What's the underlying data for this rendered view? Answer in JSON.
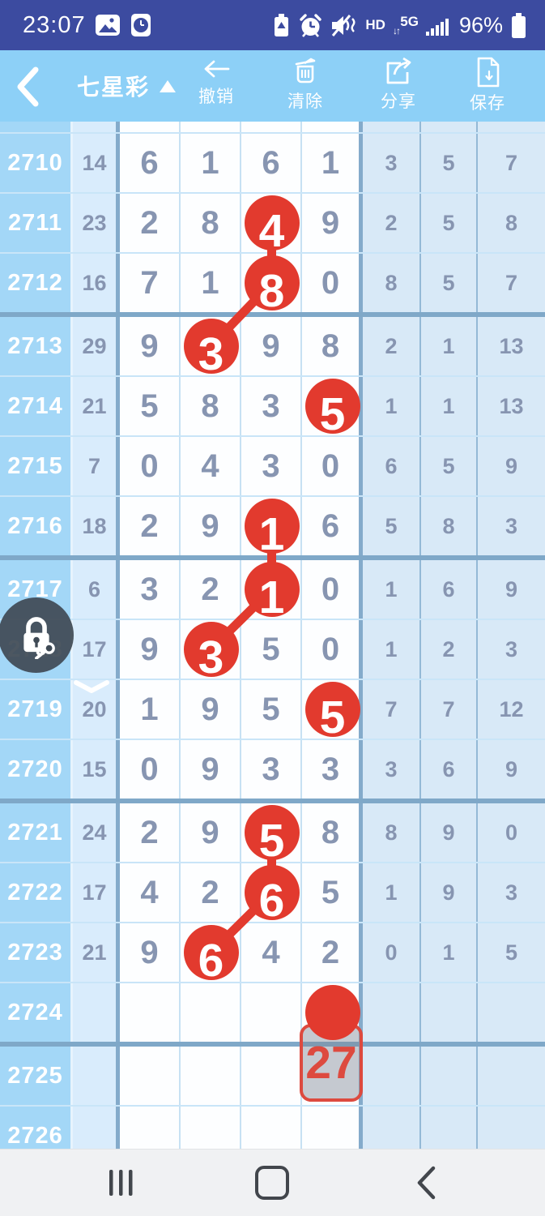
{
  "status_bar": {
    "time": "23:07",
    "left_icons": [
      "gallery-icon",
      "clock-app-icon"
    ],
    "right_icons": [
      "battery-saver-icon",
      "alarm-icon",
      "mute-icon",
      "signal-bars-icon",
      "battery-icon"
    ],
    "hd_label": "HD",
    "network_label": "5G",
    "battery_percent": "96%"
  },
  "header": {
    "title": "七星彩",
    "caret_icon": "caret-up-icon",
    "back_icon": "back-chevron-icon",
    "actions": [
      {
        "id": "undo",
        "icon": "undo-arrow-icon",
        "label": "撤销"
      },
      {
        "id": "clear",
        "icon": "trash-icon",
        "label": "清除"
      },
      {
        "id": "share",
        "icon": "share-icon",
        "label": "分享"
      },
      {
        "id": "save",
        "icon": "save-icon",
        "label": "保存"
      }
    ]
  },
  "table": {
    "rows": [
      {
        "period": "2710",
        "sum": "14",
        "d": [
          "6",
          "1",
          "6",
          "1"
        ],
        "r": [
          "3",
          "5",
          "7"
        ]
      },
      {
        "period": "2711",
        "sum": "23",
        "d": [
          "2",
          "8",
          "4",
          "9"
        ],
        "r": [
          "2",
          "5",
          "8"
        ]
      },
      {
        "period": "2712",
        "sum": "16",
        "d": [
          "7",
          "1",
          "8",
          "0"
        ],
        "r": [
          "8",
          "5",
          "7"
        ]
      },
      {
        "period": "2713",
        "sum": "29",
        "d": [
          "9",
          "3",
          "9",
          "8"
        ],
        "r": [
          "2",
          "1",
          "13"
        ]
      },
      {
        "period": "2714",
        "sum": "21",
        "d": [
          "5",
          "8",
          "3",
          "5"
        ],
        "r": [
          "1",
          "1",
          "13"
        ]
      },
      {
        "period": "2715",
        "sum": "7",
        "d": [
          "0",
          "4",
          "3",
          "0"
        ],
        "r": [
          "6",
          "5",
          "9"
        ]
      },
      {
        "period": "2716",
        "sum": "18",
        "d": [
          "2",
          "9",
          "1",
          "6"
        ],
        "r": [
          "5",
          "8",
          "3"
        ]
      },
      {
        "period": "2717",
        "sum": "6",
        "d": [
          "3",
          "2",
          "1",
          "0"
        ],
        "r": [
          "1",
          "6",
          "9"
        ]
      },
      {
        "period": "2718",
        "sum": "17",
        "d": [
          "9",
          "3",
          "5",
          "0"
        ],
        "r": [
          "1",
          "2",
          "3"
        ]
      },
      {
        "period": "2719",
        "sum": "20",
        "d": [
          "1",
          "9",
          "5",
          "5"
        ],
        "r": [
          "7",
          "7",
          "12"
        ]
      },
      {
        "period": "2720",
        "sum": "15",
        "d": [
          "0",
          "9",
          "3",
          "3"
        ],
        "r": [
          "3",
          "6",
          "9"
        ]
      },
      {
        "period": "2721",
        "sum": "24",
        "d": [
          "2",
          "9",
          "5",
          "8"
        ],
        "r": [
          "8",
          "9",
          "0"
        ]
      },
      {
        "period": "2722",
        "sum": "17",
        "d": [
          "4",
          "2",
          "6",
          "5"
        ],
        "r": [
          "1",
          "9",
          "3"
        ]
      },
      {
        "period": "2723",
        "sum": "21",
        "d": [
          "9",
          "6",
          "4",
          "2"
        ],
        "r": [
          "0",
          "1",
          "5"
        ]
      },
      {
        "period": "2724",
        "sum": "",
        "d": [
          "",
          "",
          "",
          ""
        ],
        "r": [
          "",
          "",
          ""
        ]
      },
      {
        "period": "2725",
        "sum": "",
        "d": [
          "",
          "",
          "",
          ""
        ],
        "r": [
          "",
          "",
          ""
        ]
      },
      {
        "period": "2726",
        "sum": "",
        "d": [
          "",
          "",
          "",
          ""
        ],
        "r": [
          "",
          "",
          ""
        ]
      }
    ],
    "marks": [
      {
        "row": 1,
        "col": 2,
        "value": "4"
      },
      {
        "row": 2,
        "col": 2,
        "value": "8"
      },
      {
        "row": 3,
        "col": 1,
        "value": "3"
      },
      {
        "row": 4,
        "col": 3,
        "value": "5"
      },
      {
        "row": 6,
        "col": 2,
        "value": "1"
      },
      {
        "row": 7,
        "col": 2,
        "value": "1"
      },
      {
        "row": 8,
        "col": 1,
        "value": "3"
      },
      {
        "row": 9,
        "col": 3,
        "value": "5"
      },
      {
        "row": 11,
        "col": 2,
        "value": "5"
      },
      {
        "row": 12,
        "col": 2,
        "value": "6"
      },
      {
        "row": 13,
        "col": 1,
        "value": "6"
      },
      {
        "row": 14,
        "col": 3,
        "value": ""
      }
    ],
    "links": [
      [
        0,
        1
      ],
      [
        1,
        2
      ],
      [
        4,
        5
      ],
      [
        5,
        6
      ],
      [
        8,
        9
      ],
      [
        9,
        10
      ]
    ],
    "mark_label": "27"
  },
  "floating": {
    "lock_icon": "lock-key-icon",
    "chevron_icon": "chevron-down-icon"
  },
  "nav_bar": {
    "icons": [
      "recents-icon",
      "home-icon",
      "back-icon"
    ]
  },
  "colors": {
    "status_bar_blue": "#3C4BA0",
    "header_blue": "#8DD0F7",
    "period_column_blue": "#A3D7F7",
    "light_column_blue": "#D9ECFC",
    "group_band_blue": "#7FA8C8",
    "accent_red": "#E23A2E",
    "cell_text": "#8795B1",
    "lock_bg": "#3F4A55",
    "nav_bg": "#F0F1F3"
  }
}
